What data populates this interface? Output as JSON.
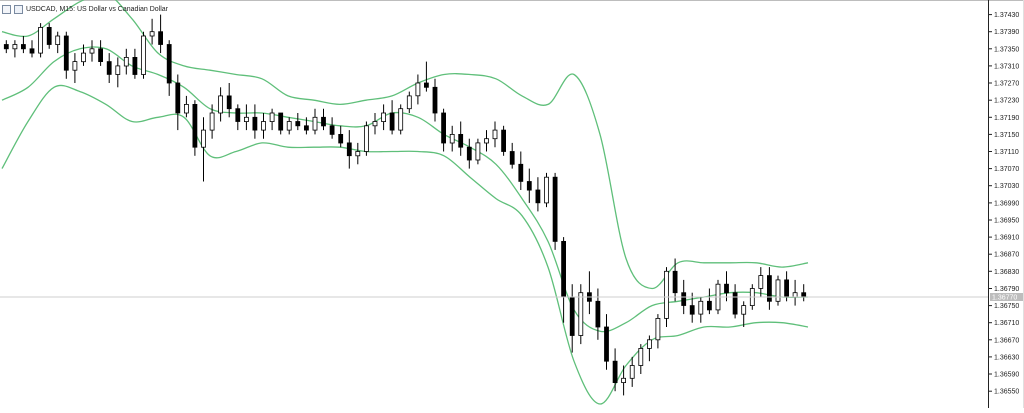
{
  "header": {
    "symbol": "USDCAD",
    "timeframe": "M15",
    "description": "US Dollar vs Canadian Dollar"
  },
  "chart_data": {
    "type": "candlestick",
    "symbol": "USDCAD",
    "timeframe": "M15",
    "indicator": "Bollinger Bands",
    "current_price": 1.3677,
    "price_label": "1.36770",
    "ylim": [
      1.3653,
      1.3746
    ],
    "y_ticks": [
      "1.37430",
      "1.37390",
      "1.37350",
      "1.37310",
      "1.37270",
      "1.37230",
      "1.37190",
      "1.37150",
      "1.37110",
      "1.37070",
      "1.37030",
      "1.36990",
      "1.36950",
      "1.36910",
      "1.36870",
      "1.36830",
      "1.36790",
      "1.36750",
      "1.36710",
      "1.36670",
      "1.36630",
      "1.36590",
      "1.36550"
    ],
    "y_tick_values": [
      1.3743,
      1.3739,
      1.3735,
      1.3731,
      1.3727,
      1.3723,
      1.3719,
      1.3715,
      1.3711,
      1.3707,
      1.3703,
      1.3699,
      1.3695,
      1.3691,
      1.3687,
      1.3683,
      1.3679,
      1.3675,
      1.3671,
      1.3667,
      1.3663,
      1.3659,
      1.3655
    ],
    "bands": {
      "upper": [
        1.3739,
        1.3738,
        1.3742,
        1.3746,
        1.3748,
        1.3742,
        1.3734,
        1.3731,
        1.373,
        1.3729,
        1.3728,
        1.3724,
        1.3723,
        1.3722,
        1.3723,
        1.3724,
        1.3727,
        1.3729,
        1.3729,
        1.3728,
        1.3724,
        1.3722,
        1.3729,
        1.3715,
        1.3686,
        1.3679,
        1.3685,
        1.3685,
        1.3685,
        1.3685,
        1.3684,
        1.3685
      ],
      "middle": [
        1.3723,
        1.3726,
        1.3732,
        1.3735,
        1.3735,
        1.3731,
        1.3729,
        1.3726,
        1.3721,
        1.372,
        1.372,
        1.3719,
        1.3718,
        1.3717,
        1.3717,
        1.372,
        1.3719,
        1.3715,
        1.3712,
        1.3708,
        1.37,
        1.369,
        1.3674,
        1.3669,
        1.3671,
        1.3675,
        1.3676,
        1.3677,
        1.3678,
        1.3678,
        1.3677,
        1.3677
      ],
      "lower": [
        1.3707,
        1.3718,
        1.3726,
        1.3725,
        1.3722,
        1.3718,
        1.3719,
        1.3719,
        1.371,
        1.3711,
        1.3713,
        1.3712,
        1.3712,
        1.3712,
        1.3711,
        1.3711,
        1.3711,
        1.371,
        1.3705,
        1.37,
        1.3696,
        1.3684,
        1.3662,
        1.3652,
        1.3661,
        1.3667,
        1.3668,
        1.367,
        1.367,
        1.3671,
        1.3671,
        1.367
      ]
    },
    "candles": [
      [
        1.3736,
        1.3737,
        1.3734,
        1.3735
      ],
      [
        1.3735,
        1.3737,
        1.3733,
        1.3736
      ],
      [
        1.3736,
        1.3738,
        1.3734,
        1.3735
      ],
      [
        1.3735,
        1.3737,
        1.3733,
        1.3734
      ],
      [
        1.3734,
        1.3741,
        1.3733,
        1.374
      ],
      [
        1.374,
        1.3741,
        1.3735,
        1.3736
      ],
      [
        1.3736,
        1.3739,
        1.3734,
        1.3738
      ],
      [
        1.3738,
        1.3739,
        1.3728,
        1.373
      ],
      [
        1.373,
        1.3734,
        1.3727,
        1.3732
      ],
      [
        1.3732,
        1.3736,
        1.3731,
        1.3734
      ],
      [
        1.3734,
        1.3737,
        1.3732,
        1.3735
      ],
      [
        1.3735,
        1.3737,
        1.3731,
        1.3732
      ],
      [
        1.3732,
        1.3734,
        1.3727,
        1.3729
      ],
      [
        1.3729,
        1.3733,
        1.3726,
        1.3731
      ],
      [
        1.3731,
        1.3735,
        1.3729,
        1.3733
      ],
      [
        1.3733,
        1.3735,
        1.3728,
        1.3729
      ],
      [
        1.3729,
        1.3739,
        1.3728,
        1.3738
      ],
      [
        1.3738,
        1.3742,
        1.3736,
        1.3739
      ],
      [
        1.3739,
        1.3743,
        1.3734,
        1.3736
      ],
      [
        1.3736,
        1.3737,
        1.3724,
        1.3727
      ],
      [
        1.3727,
        1.3729,
        1.3716,
        1.372
      ],
      [
        1.372,
        1.3724,
        1.3719,
        1.3722
      ],
      [
        1.3722,
        1.3723,
        1.371,
        1.3712
      ],
      [
        1.3712,
        1.3719,
        1.3704,
        1.3716
      ],
      [
        1.3716,
        1.3722,
        1.3714,
        1.372
      ],
      [
        1.372,
        1.3726,
        1.3718,
        1.3724
      ],
      [
        1.3724,
        1.3727,
        1.3719,
        1.3721
      ],
      [
        1.3721,
        1.3722,
        1.3716,
        1.3718
      ],
      [
        1.3718,
        1.3722,
        1.3716,
        1.3719
      ],
      [
        1.3719,
        1.3722,
        1.3714,
        1.3716
      ],
      [
        1.3716,
        1.372,
        1.3714,
        1.3718
      ],
      [
        1.3718,
        1.3721,
        1.3716,
        1.372
      ],
      [
        1.372,
        1.372,
        1.3715,
        1.3716
      ],
      [
        1.3716,
        1.3719,
        1.3715,
        1.3718
      ],
      [
        1.3718,
        1.372,
        1.3716,
        1.3717
      ],
      [
        1.3717,
        1.3719,
        1.3715,
        1.3716
      ],
      [
        1.3716,
        1.3721,
        1.3715,
        1.3719
      ],
      [
        1.3719,
        1.3721,
        1.3716,
        1.3717
      ],
      [
        1.3717,
        1.3719,
        1.3714,
        1.3715
      ],
      [
        1.3715,
        1.3717,
        1.3712,
        1.3713
      ],
      [
        1.3713,
        1.3716,
        1.3707,
        1.371
      ],
      [
        1.371,
        1.3713,
        1.3708,
        1.3711
      ],
      [
        1.3711,
        1.3718,
        1.371,
        1.3717
      ],
      [
        1.3717,
        1.372,
        1.3715,
        1.3718
      ],
      [
        1.3718,
        1.3722,
        1.3716,
        1.372
      ],
      [
        1.372,
        1.3723,
        1.3715,
        1.3716
      ],
      [
        1.3716,
        1.3722,
        1.3715,
        1.3721
      ],
      [
        1.3721,
        1.3725,
        1.372,
        1.3724
      ],
      [
        1.3724,
        1.3729,
        1.3722,
        1.3727
      ],
      [
        1.3727,
        1.3732,
        1.3725,
        1.3726
      ],
      [
        1.3726,
        1.3728,
        1.3718,
        1.372
      ],
      [
        1.372,
        1.3721,
        1.3711,
        1.3713
      ],
      [
        1.3713,
        1.3717,
        1.3711,
        1.3715
      ],
      [
        1.3715,
        1.3718,
        1.371,
        1.3712
      ],
      [
        1.3712,
        1.3714,
        1.3707,
        1.3709
      ],
      [
        1.3709,
        1.3714,
        1.3708,
        1.3713
      ],
      [
        1.3713,
        1.3716,
        1.3711,
        1.3714
      ],
      [
        1.3714,
        1.3718,
        1.3712,
        1.3716
      ],
      [
        1.3716,
        1.3717,
        1.371,
        1.3711
      ],
      [
        1.3711,
        1.3713,
        1.3707,
        1.3708
      ],
      [
        1.3708,
        1.3711,
        1.3702,
        1.3704
      ],
      [
        1.3704,
        1.3707,
        1.3699,
        1.3702
      ],
      [
        1.3702,
        1.3705,
        1.3697,
        1.3699
      ],
      [
        1.3699,
        1.3706,
        1.3698,
        1.3705
      ],
      [
        1.3705,
        1.3706,
        1.3688,
        1.369
      ],
      [
        1.369,
        1.3691,
        1.3671,
        1.3677
      ],
      [
        1.3677,
        1.368,
        1.3664,
        1.3668
      ],
      [
        1.3668,
        1.368,
        1.3666,
        1.3678
      ],
      [
        1.3678,
        1.3683,
        1.3673,
        1.3676
      ],
      [
        1.3676,
        1.3679,
        1.3667,
        1.367
      ],
      [
        1.367,
        1.3673,
        1.366,
        1.3662
      ],
      [
        1.3662,
        1.3665,
        1.3655,
        1.3657
      ],
      [
        1.3657,
        1.3661,
        1.3654,
        1.3658
      ],
      [
        1.3658,
        1.3663,
        1.3656,
        1.3661
      ],
      [
        1.3661,
        1.3666,
        1.3659,
        1.3665
      ],
      [
        1.3665,
        1.3668,
        1.3662,
        1.3667
      ],
      [
        1.3667,
        1.3673,
        1.3665,
        1.3672
      ],
      [
        1.3672,
        1.3684,
        1.367,
        1.3683
      ],
      [
        1.3683,
        1.3686,
        1.3676,
        1.3678
      ],
      [
        1.3678,
        1.3681,
        1.3673,
        1.3675
      ],
      [
        1.3675,
        1.3678,
        1.3671,
        1.3673
      ],
      [
        1.3673,
        1.3677,
        1.3671,
        1.3676
      ],
      [
        1.3676,
        1.3679,
        1.3673,
        1.3674
      ],
      [
        1.3674,
        1.3681,
        1.3673,
        1.368
      ],
      [
        1.368,
        1.3683,
        1.3676,
        1.3678
      ],
      [
        1.3678,
        1.368,
        1.3672,
        1.3673
      ],
      [
        1.3673,
        1.3676,
        1.367,
        1.3675
      ],
      [
        1.3675,
        1.368,
        1.3674,
        1.3679
      ],
      [
        1.3679,
        1.3684,
        1.3677,
        1.3682
      ],
      [
        1.3682,
        1.3684,
        1.3674,
        1.3676
      ],
      [
        1.3676,
        1.3682,
        1.3675,
        1.3681
      ],
      [
        1.3681,
        1.3683,
        1.3676,
        1.3677
      ],
      [
        1.3677,
        1.3681,
        1.3675,
        1.3678
      ],
      [
        1.3678,
        1.368,
        1.3676,
        1.3677
      ]
    ]
  }
}
